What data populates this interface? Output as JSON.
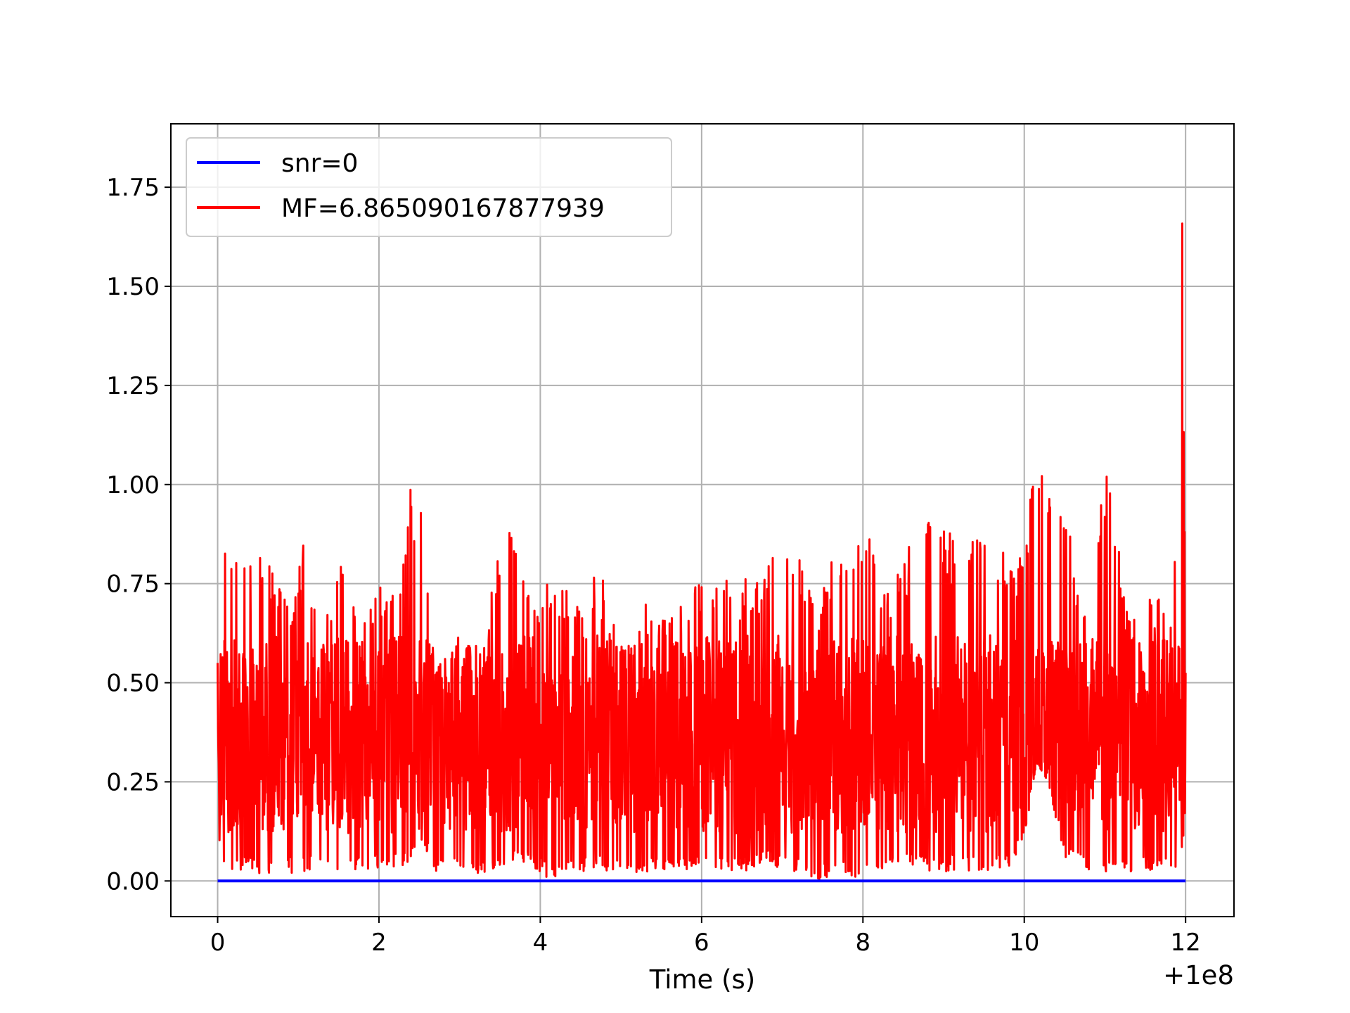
{
  "chart_data": {
    "type": "line",
    "title": "",
    "xlabel": "Time (s)",
    "ylabel": "",
    "x_offset_label": "+1e8",
    "xlim": [
      -0.58,
      12.6
    ],
    "ylim": [
      -0.09,
      1.91
    ],
    "x_ticks": [
      0,
      2,
      4,
      6,
      8,
      10,
      12
    ],
    "x_tick_labels": [
      "0",
      "2",
      "4",
      "6",
      "8",
      "10",
      "12"
    ],
    "y_ticks": [
      0.0,
      0.25,
      0.5,
      0.75,
      1.0,
      1.25,
      1.5,
      1.75
    ],
    "y_tick_labels": [
      "0.00",
      "0.25",
      "0.50",
      "0.75",
      "1.00",
      "1.25",
      "1.50",
      "1.75"
    ],
    "grid": true,
    "legend_position": "top-left",
    "x_range": [
      0,
      12
    ],
    "series": [
      {
        "name": "snr=0",
        "color": "#0000ff",
        "x": [
          0,
          12
        ],
        "y": [
          0,
          0
        ]
      },
      {
        "name": "MF=6.865090167877939",
        "color": "#ff0000",
        "envelope_x": [
          0,
          0.1,
          0.3,
          0.5,
          0.7,
          0.9,
          1.05,
          1.3,
          1.5,
          1.8,
          2.0,
          2.3,
          2.35,
          2.5,
          2.7,
          3.0,
          3.3,
          3.55,
          3.7,
          4.0,
          4.1,
          4.4,
          4.7,
          5.0,
          5.3,
          5.6,
          5.9,
          6.2,
          6.5,
          6.8,
          7.1,
          7.4,
          7.7,
          8.0,
          8.3,
          8.6,
          8.9,
          9.2,
          9.5,
          9.8,
          10.0,
          10.15,
          10.3,
          10.5,
          10.8,
          11.0,
          11.3,
          11.6,
          11.85,
          11.95,
          12.0
        ],
        "envelope_max": [
          0.55,
          0.89,
          0.86,
          0.83,
          0.8,
          0.7,
          0.86,
          0.6,
          0.85,
          0.72,
          0.74,
          0.8,
          1.0,
          0.98,
          0.52,
          0.62,
          0.58,
          0.98,
          0.86,
          0.66,
          0.8,
          0.72,
          0.82,
          0.6,
          0.7,
          0.66,
          0.74,
          0.82,
          0.76,
          0.8,
          0.92,
          0.72,
          0.84,
          0.92,
          0.74,
          0.86,
          0.95,
          0.84,
          0.88,
          0.82,
          0.86,
          1.09,
          0.98,
          0.94,
          0.66,
          1.06,
          0.68,
          0.74,
          0.64,
          1.82,
          0.57
        ],
        "envelope_min": [
          0.1,
          0.03,
          0.02,
          0.02,
          0.02,
          0.02,
          0.02,
          0.03,
          0.02,
          0.03,
          0.03,
          0.04,
          0.02,
          0.1,
          0.02,
          0.02,
          0.02,
          0.03,
          0.05,
          0.02,
          0.0,
          0.02,
          0.03,
          0.02,
          0.02,
          0.02,
          0.02,
          0.03,
          0.02,
          0.04,
          0.03,
          0.0,
          0.02,
          0.0,
          0.03,
          0.03,
          0.02,
          0.03,
          0.02,
          0.03,
          0.1,
          0.3,
          0.25,
          0.05,
          0.02,
          0.02,
          0.02,
          0.02,
          0.02,
          0.06,
          0.14
        ]
      }
    ]
  }
}
